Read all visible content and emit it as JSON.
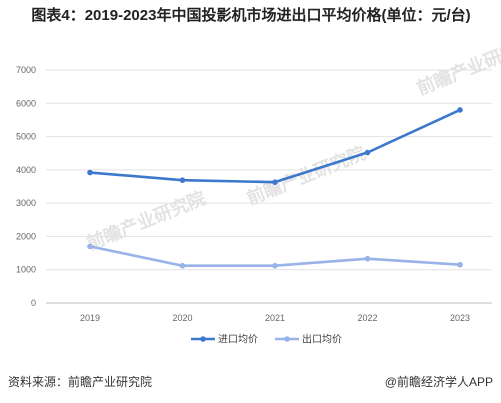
{
  "title": "图表4：2019-2023年中国投影机市场进出口平均价格(单位：元/台)",
  "source": "资料来源：前瞻产业研究院",
  "brand": "@前瞻经济学人APP",
  "watermark": "前瞻产业研究院",
  "colors": {
    "import": "#3d78cc",
    "export": "#97b3e8",
    "grid": "#e2e2e2"
  },
  "chart_data": {
    "type": "line",
    "categories": [
      "2019",
      "2020",
      "2021",
      "2022",
      "2023"
    ],
    "ylim": [
      0,
      7000
    ],
    "yticks": [
      0,
      1000,
      2000,
      3000,
      4000,
      5000,
      6000,
      7000
    ],
    "grid": true,
    "legend": "bottom",
    "series": [
      {
        "name": "进口均价",
        "values": [
          3920,
          3690,
          3630,
          4520,
          5800
        ]
      },
      {
        "name": "出口均价",
        "values": [
          1700,
          1120,
          1120,
          1330,
          1150
        ]
      }
    ]
  }
}
